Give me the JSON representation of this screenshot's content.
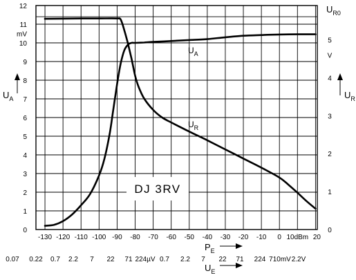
{
  "chart_data": {
    "type": "line",
    "left_axis": {
      "symbol": "U",
      "subscript": "A",
      "unit": "mV",
      "range": [
        0,
        12
      ],
      "tick_labels": [
        "0",
        "1",
        "2",
        "3",
        "4",
        "5",
        "6",
        "7",
        "8",
        "9",
        "10",
        "11",
        "12"
      ]
    },
    "right_axis": {
      "symbol": "U",
      "subscript": "R",
      "unit": "V",
      "range": [
        0,
        5.9
      ],
      "tick_labels": [
        "0",
        "1",
        "2",
        "3",
        "4",
        "5"
      ],
      "reference_symbol": "U",
      "reference_subscript": "R0"
    },
    "bottom_axis": {
      "symbol": "P",
      "subscript": "E",
      "range": [
        -135,
        21
      ],
      "tick_values": [
        -130,
        -120,
        -110,
        -100,
        -90,
        -80,
        -70,
        -60,
        -50,
        -40,
        -30,
        -20,
        -10,
        0,
        10,
        20
      ],
      "tick_labels": [
        "-130",
        "-120",
        "-110",
        "-100",
        "-90",
        "-80",
        "-70",
        "-60",
        "-50",
        "-40",
        "-30",
        "-20",
        "-10",
        "0",
        "10dBm",
        "20"
      ]
    },
    "secondary_x_axis": {
      "symbol": "U",
      "subscript": "E",
      "labels": [
        "0.07",
        "0.22",
        "0.7",
        "2.2",
        "7",
        "22",
        "71",
        "224µV",
        "0.7",
        "2.2",
        "7",
        "22",
        "71",
        "224",
        "710mV",
        "2.2V"
      ]
    },
    "series": [
      {
        "label_symbol": "U",
        "label_subscript": "A",
        "axis": "left",
        "x": [
          -130,
          -125,
          -120,
          -115,
          -110,
          -105,
          -100,
          -97,
          -94,
          -92,
          -90,
          -88,
          -86,
          -84,
          -82,
          -80,
          -75,
          -70,
          -60,
          -50,
          -40,
          -30,
          -20,
          -10,
          0,
          10,
          20
        ],
        "y": [
          0.2,
          0.25,
          0.45,
          0.8,
          1.3,
          1.9,
          2.9,
          3.8,
          5.2,
          6.5,
          7.8,
          8.9,
          9.6,
          9.9,
          10.0,
          10.0,
          10.02,
          10.05,
          10.1,
          10.15,
          10.2,
          10.3,
          10.38,
          10.42,
          10.45,
          10.46,
          10.46
        ]
      },
      {
        "label_symbol": "U",
        "label_subscript": "R",
        "axis": "right",
        "x": [
          -130,
          -110,
          -100,
          -90,
          -88,
          -86,
          -84,
          -82,
          -80,
          -78,
          -75,
          -70,
          -65,
          -60,
          -50,
          -40,
          -30,
          -20,
          -10,
          0,
          5,
          10,
          15,
          20
        ],
        "y": [
          5.55,
          5.56,
          5.56,
          5.56,
          5.53,
          5.25,
          4.9,
          4.5,
          4.05,
          3.75,
          3.45,
          3.15,
          2.95,
          2.82,
          2.58,
          2.35,
          2.11,
          1.87,
          1.63,
          1.37,
          1.18,
          0.97,
          0.75,
          0.55
        ]
      }
    ],
    "annotation": "DJ 3RV",
    "grid": true,
    "legend": "none"
  }
}
